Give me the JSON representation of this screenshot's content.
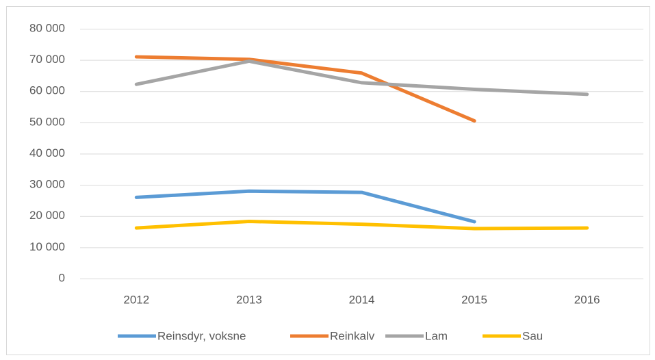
{
  "chart_data": {
    "type": "line",
    "categories": [
      "2012",
      "2013",
      "2014",
      "2015",
      "2016"
    ],
    "series": [
      {
        "name": "Reinsdyr, voksne",
        "color": "#5b9bd5",
        "values": [
          26000,
          28000,
          27600,
          18200,
          null
        ]
      },
      {
        "name": "Reinkalv",
        "color": "#ed7d31",
        "values": [
          71000,
          70200,
          65800,
          50500,
          null
        ]
      },
      {
        "name": "Lam",
        "color": "#a5a5a5",
        "values": [
          62200,
          69600,
          62700,
          60600,
          59000
        ]
      },
      {
        "name": "Sau",
        "color": "#ffc000",
        "values": [
          16200,
          18300,
          17400,
          16000,
          16200
        ]
      }
    ],
    "ylim": [
      0,
      80000
    ],
    "yticks": [
      {
        "value": 0,
        "label": "0"
      },
      {
        "value": 10000,
        "label": "10 000"
      },
      {
        "value": 20000,
        "label": "20 000"
      },
      {
        "value": 30000,
        "label": "30 000"
      },
      {
        "value": 40000,
        "label": "40 000"
      },
      {
        "value": 50000,
        "label": "50 000"
      },
      {
        "value": 60000,
        "label": "60 000"
      },
      {
        "value": 70000,
        "label": "70 000"
      },
      {
        "value": 80000,
        "label": "80 000"
      }
    ],
    "grid": true,
    "legend": "bottom"
  }
}
